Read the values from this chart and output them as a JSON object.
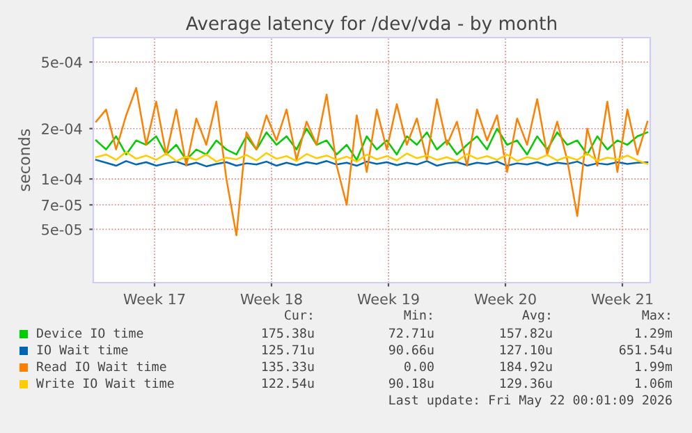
{
  "chart_data": {
    "type": "line",
    "title": "Average latency for /dev/vda - by month",
    "ylabel": "seconds",
    "log": "y",
    "grid": true,
    "legend": "bottom",
    "line_style": "solid",
    "marker": "none",
    "xlim": [
      "2026-04-18T20:00",
      "2026-05-22T04:00"
    ],
    "xticks": [
      {
        "value": "2026-04-22T12:00",
        "label": "Week 17"
      },
      {
        "value": "2026-04-29T12:00",
        "label": "Week 18"
      },
      {
        "value": "2026-05-06T12:00",
        "label": "Week 19"
      },
      {
        "value": "2026-05-13T12:00",
        "label": "Week 20"
      },
      {
        "value": "2026-05-20T12:00",
        "label": "Week 21"
      }
    ],
    "ylim": [
      2.4e-05,
      0.0007
    ],
    "yticks": [
      {
        "value": 5e-05,
        "label": "5e-05"
      },
      {
        "value": 7e-05,
        "label": "7e-05"
      },
      {
        "value": 0.0001,
        "label": "1e-04"
      },
      {
        "value": 0.0002,
        "label": "2e-04"
      },
      {
        "value": 0.0005,
        "label": "5e-04"
      }
    ],
    "x": [
      "2026-04-19T00:00",
      "2026-04-19T14:24",
      "2026-04-20T04:48",
      "2026-04-20T19:12",
      "2026-04-21T09:36",
      "2026-04-22T00:00",
      "2026-04-22T14:24",
      "2026-04-23T04:48",
      "2026-04-23T19:12",
      "2026-04-24T09:36",
      "2026-04-25T00:00",
      "2026-04-25T14:24",
      "2026-04-26T04:48",
      "2026-04-26T19:12",
      "2026-04-27T09:36",
      "2026-04-28T00:00",
      "2026-04-28T14:24",
      "2026-04-29T04:48",
      "2026-04-29T19:12",
      "2026-04-30T09:36",
      "2026-05-01T00:00",
      "2026-05-01T14:24",
      "2026-05-02T04:48",
      "2026-05-02T19:12",
      "2026-05-03T09:36",
      "2026-05-04T00:00",
      "2026-05-04T14:24",
      "2026-05-05T04:48",
      "2026-05-05T19:12",
      "2026-05-06T09:36",
      "2026-05-07T00:00",
      "2026-05-07T14:24",
      "2026-05-08T04:48",
      "2026-05-08T19:12",
      "2026-05-09T09:36",
      "2026-05-10T00:00",
      "2026-05-10T14:24",
      "2026-05-11T04:48",
      "2026-05-11T19:12",
      "2026-05-12T09:36",
      "2026-05-13T00:00",
      "2026-05-13T14:24",
      "2026-05-14T04:48",
      "2026-05-14T19:12",
      "2026-05-15T09:36",
      "2026-05-16T00:00",
      "2026-05-16T14:24",
      "2026-05-17T04:48",
      "2026-05-17T19:12",
      "2026-05-18T09:36",
      "2026-05-19T00:00",
      "2026-05-19T14:24",
      "2026-05-20T04:48",
      "2026-05-20T19:12",
      "2026-05-21T09:36",
      "2026-05-22T00:00"
    ],
    "series": [
      {
        "name": "Device IO time",
        "color": "#00cc00",
        "values": [
          0.00017,
          0.00015,
          0.00018,
          0.00014,
          0.00017,
          0.00016,
          0.00018,
          0.00014,
          0.00016,
          0.00013,
          0.00015,
          0.00014,
          0.00017,
          0.00015,
          0.00014,
          0.00018,
          0.00015,
          0.00019,
          0.00016,
          0.00018,
          0.00015,
          0.0002,
          0.00016,
          0.00017,
          0.00014,
          0.00016,
          0.00013,
          0.00018,
          0.00015,
          0.00017,
          0.00014,
          0.00018,
          0.00016,
          0.00019,
          0.00015,
          0.00017,
          0.00014,
          0.00016,
          0.00018,
          0.00015,
          0.0002,
          0.00016,
          0.00017,
          0.00014,
          0.00018,
          0.00015,
          0.00019,
          0.00016,
          0.00017,
          0.00014,
          0.00018,
          0.00015,
          0.00017,
          0.00016,
          0.00018,
          0.00019
        ]
      },
      {
        "name": "IO Wait time",
        "color": "#0066b3",
        "values": [
          0.00013,
          0.000125,
          0.00012,
          0.000128,
          0.000122,
          0.000126,
          0.00012,
          0.000124,
          0.000127,
          0.000121,
          0.000125,
          0.000119,
          0.000123,
          0.000126,
          0.00012,
          0.000124,
          0.000122,
          0.000127,
          0.00012,
          0.000125,
          0.000121,
          0.000126,
          0.000123,
          0.000128,
          0.000122,
          0.000125,
          0.00012,
          0.000127,
          0.000123,
          0.000126,
          0.000121,
          0.000125,
          0.000122,
          0.000128,
          0.00012,
          0.000124,
          0.000126,
          0.000121,
          0.000125,
          0.000123,
          0.000127,
          0.00012,
          0.000124,
          0.000122,
          0.000126,
          0.000121,
          0.000125,
          0.000123,
          0.000127,
          0.00012,
          0.000124,
          0.000122,
          0.000126,
          0.000123,
          0.000125,
          0.000126
        ]
      },
      {
        "name": "Read IO Wait time",
        "color": "#ff8000",
        "values": [
          0.00022,
          0.00026,
          0.00015,
          0.00024,
          0.00035,
          0.00016,
          0.00029,
          0.00014,
          0.00026,
          0.00012,
          0.00023,
          0.00016,
          0.00029,
          0.0001,
          4.6e-05,
          0.00019,
          0.00015,
          0.00024,
          0.00017,
          0.00026,
          0.00013,
          0.00022,
          0.00016,
          0.00032,
          0.00012,
          7e-05,
          0.00024,
          0.00011,
          0.00026,
          0.00015,
          0.00028,
          0.00016,
          0.00023,
          0.00013,
          0.0003,
          0.00016,
          0.00022,
          0.00012,
          0.00026,
          0.00017,
          0.00024,
          0.00011,
          0.00023,
          0.00016,
          0.0003,
          0.00014,
          0.00022,
          0.00013,
          6e-05,
          0.0002,
          0.00012,
          0.00029,
          0.00011,
          0.00026,
          0.00014,
          0.00022
        ]
      },
      {
        "name": "Write IO Wait time",
        "color": "#ffcc00",
        "values": [
          0.000135,
          0.00014,
          0.00013,
          0.000145,
          0.000132,
          0.000138,
          0.00013,
          0.000142,
          0.000128,
          0.000136,
          0.00013,
          0.00014,
          0.000127,
          0.000134,
          0.000131,
          0.000139,
          0.000129,
          0.000143,
          0.000132,
          0.000137,
          0.000128,
          0.000141,
          0.000133,
          0.000138,
          0.00013,
          0.000136,
          0.000127,
          0.00014,
          0.000131,
          0.000137,
          0.000129,
          0.000142,
          0.000133,
          0.000138,
          0.00013,
          0.000135,
          0.000128,
          0.000141,
          0.000132,
          0.000137,
          0.00013,
          0.00014,
          0.000128,
          0.000135,
          0.000131,
          0.000139,
          0.000129,
          0.000136,
          0.00013,
          0.000142,
          0.000128,
          0.000134,
          0.000131,
          0.000138,
          0.000129,
          0.000123
        ]
      }
    ],
    "annotations": [
      "Cur:",
      "Min:",
      "Avg:",
      "Max:",
      "175.38u",
      "72.71u",
      "157.82u",
      "1.29m",
      "125.71u",
      "90.66u",
      "127.10u",
      "651.54u",
      "135.33u",
      "0.00",
      "184.92u",
      "1.99m",
      "122.54u",
      "90.18u",
      "129.36u",
      "1.06m",
      "Last update: Fri May 22 00:01:09 2026"
    ]
  }
}
